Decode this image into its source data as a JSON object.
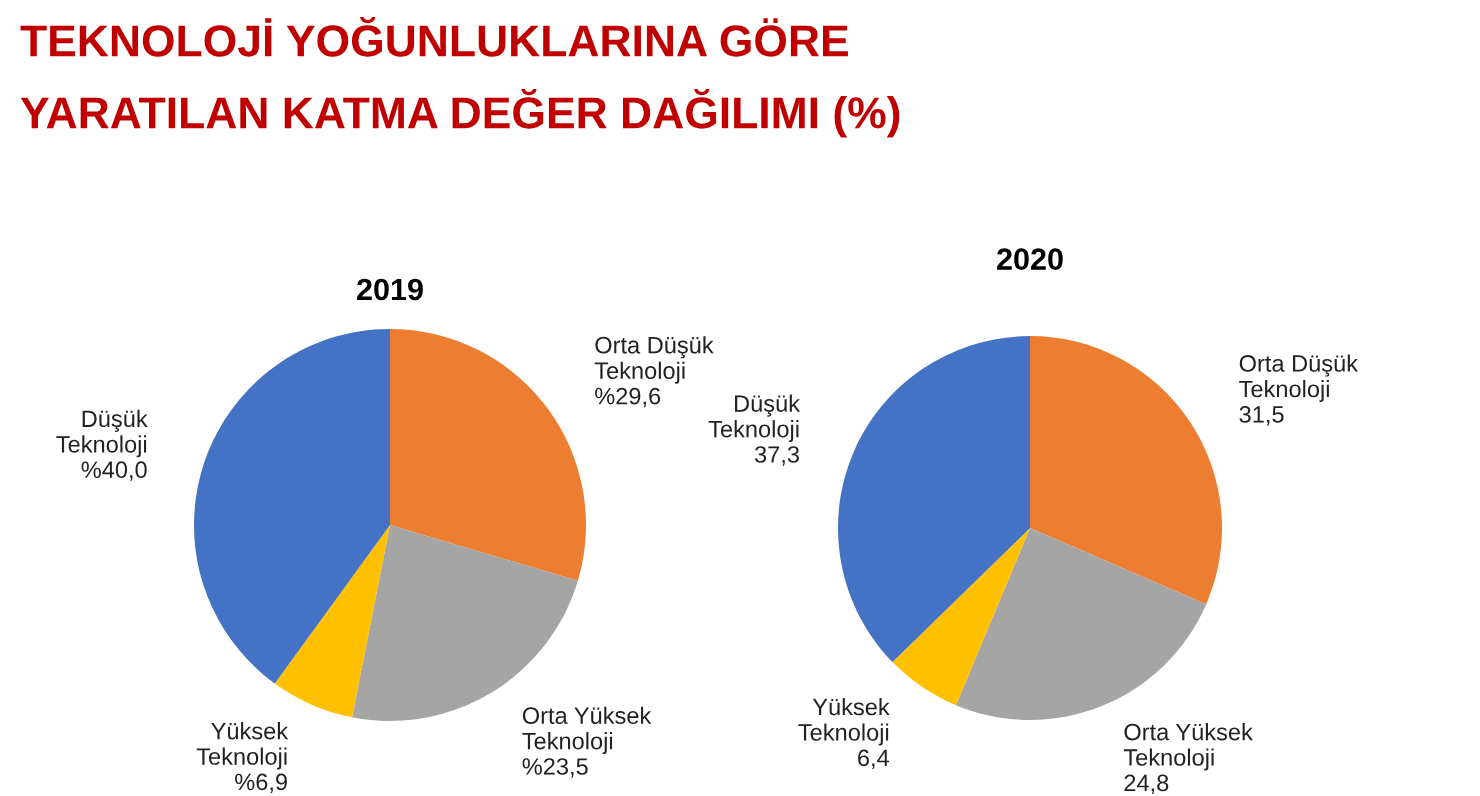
{
  "chart_data": [
    {
      "type": "pie",
      "title": "2019",
      "annotations": [
        "TEKNOLOJİ YOĞUNLUKLARINA GÖRE\nYARATILAN KATMA DEĞER DAĞILIMI (%)"
      ],
      "categories": [
        "Orta Düşük\nTeknoloji",
        "Orta Yüksek\nTeknoloji",
        "Yüksek\nTeknoloji",
        "Düşük\nTeknoloji"
      ],
      "values": [
        29.6,
        23.5,
        6.9,
        40.0
      ],
      "value_labels": [
        "%29,6",
        "%23,5",
        "%6,9",
        "%40,0"
      ],
      "colors": [
        "#ed7d31",
        "#a5a5a5",
        "#ffc000",
        "#4472c4"
      ]
    },
    {
      "type": "pie",
      "title": "2020",
      "categories": [
        "Orta Düşük\nTeknoloji",
        "Orta Yüksek\nTeknoloji",
        "Yüksek\nTeknoloji",
        "Düşük\nTeknoloji"
      ],
      "values": [
        31.5,
        24.8,
        6.4,
        37.3
      ],
      "value_labels": [
        "31,5",
        "24,8",
        "6,4",
        "37,3"
      ],
      "colors": [
        "#ed7d31",
        "#a5a5a5",
        "#ffc000",
        "#4472c4"
      ]
    }
  ]
}
